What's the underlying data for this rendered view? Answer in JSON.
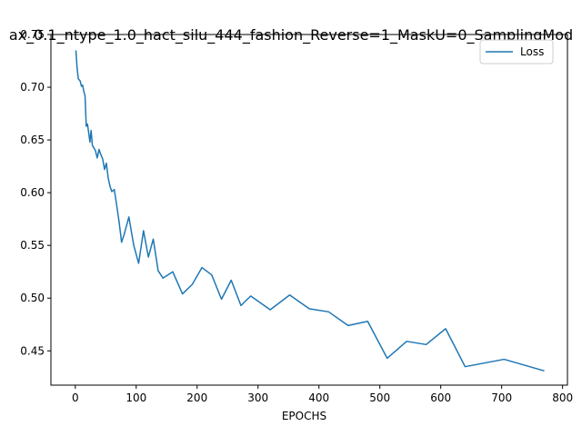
{
  "chart_data": {
    "type": "line",
    "title": "ax_0.1_ntype_1.0_hact_silu_444_fashion_Reverse=1_MaskU=0_SamplingMod",
    "xlabel": "EPOCHS",
    "ylabel": "",
    "xlim": [
      -40,
      808
    ],
    "ylim": [
      0.4175,
      0.75
    ],
    "xticks": [
      0,
      100,
      200,
      300,
      400,
      500,
      600,
      700,
      800
    ],
    "yticks": [
      0.45,
      0.5,
      0.55,
      0.6,
      0.65,
      0.7,
      0.75
    ],
    "ytick_labels": [
      "0.45",
      "0.50",
      "0.55",
      "0.60",
      "0.65",
      "0.70",
      "0.75"
    ],
    "grid": false,
    "legend_position": "top-right",
    "series": [
      {
        "name": "Loss",
        "color": "#1f77b4",
        "x": [
          1,
          3,
          5,
          8,
          10,
          12,
          14,
          16,
          18,
          20,
          22,
          24,
          26,
          28,
          30,
          33,
          36,
          39,
          42,
          45,
          48,
          51,
          54,
          57,
          60,
          64,
          68,
          72,
          76,
          80,
          88,
          96,
          104,
          112,
          120,
          128,
          136,
          144,
          160,
          176,
          192,
          208,
          224,
          240,
          256,
          272,
          288,
          320,
          352,
          384,
          416,
          448,
          480,
          512,
          544,
          576,
          608,
          640,
          704,
          770
        ],
        "y": [
          0.735,
          0.718,
          0.708,
          0.706,
          0.701,
          0.702,
          0.696,
          0.692,
          0.663,
          0.665,
          0.657,
          0.648,
          0.659,
          0.645,
          0.643,
          0.64,
          0.633,
          0.641,
          0.636,
          0.632,
          0.622,
          0.628,
          0.614,
          0.606,
          0.601,
          0.603,
          0.588,
          0.572,
          0.553,
          0.56,
          0.577,
          0.55,
          0.533,
          0.564,
          0.539,
          0.556,
          0.526,
          0.519,
          0.525,
          0.504,
          0.513,
          0.529,
          0.522,
          0.499,
          0.517,
          0.493,
          0.502,
          0.489,
          0.503,
          0.49,
          0.487,
          0.474,
          0.478,
          0.443,
          0.459,
          0.456,
          0.471,
          0.435,
          0.442,
          0.431
        ]
      }
    ]
  }
}
